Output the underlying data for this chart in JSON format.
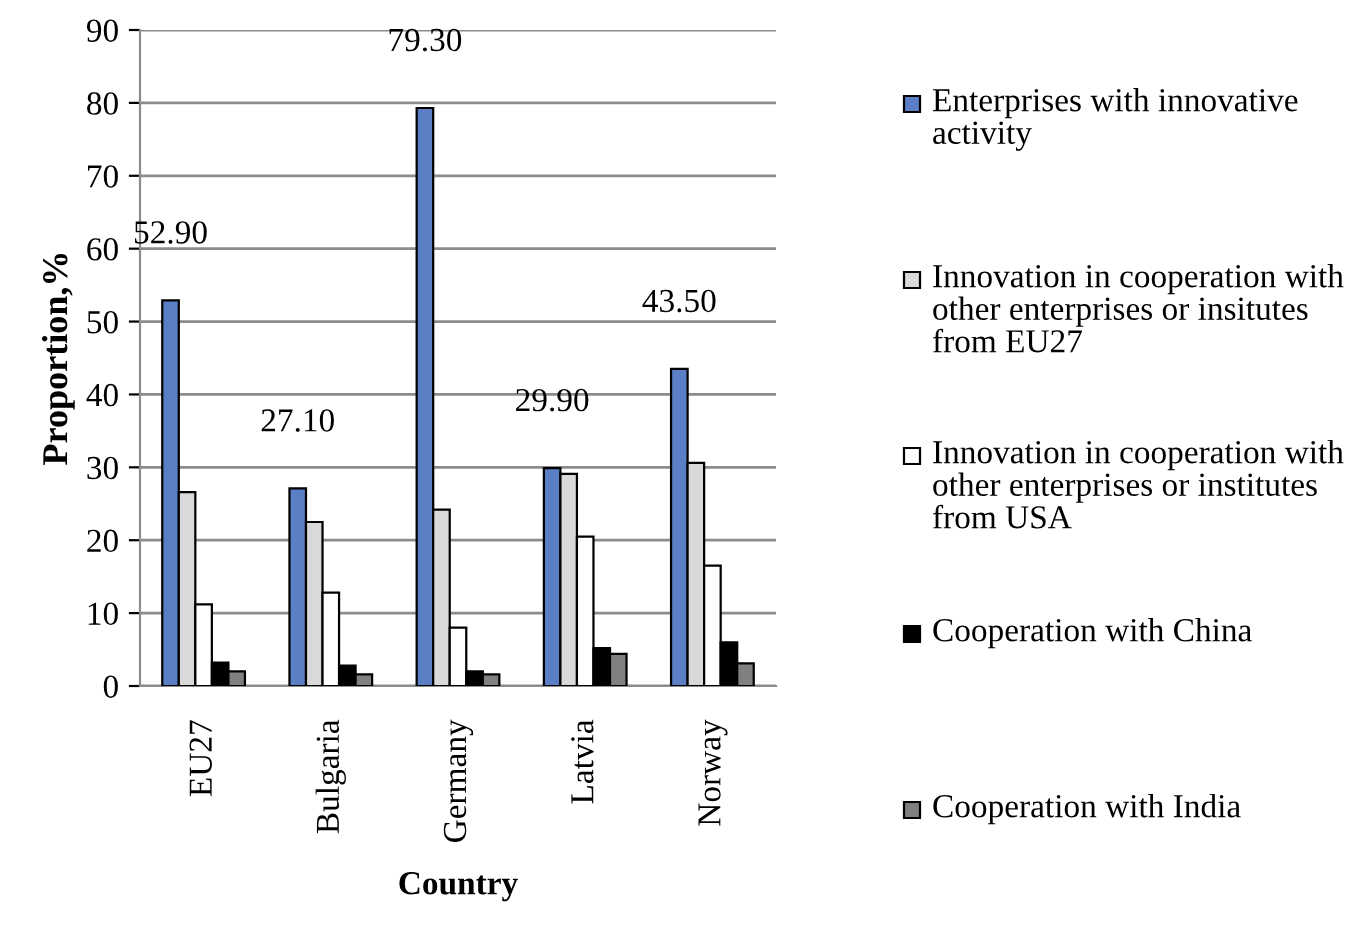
{
  "chart_data": {
    "type": "bar",
    "xlabel": "Country",
    "ylabel": "Proportion,%",
    "categories": [
      "EU27",
      "Bulgaria",
      "Germany",
      "Latvia",
      "Norway"
    ],
    "series": [
      {
        "name": "Enterprises with innovative activity",
        "color": "#5b7fc4",
        "values": [
          52.9,
          27.1,
          79.3,
          29.9,
          43.5
        ],
        "value_labels": [
          "52.90",
          "27.10",
          "79.30",
          "29.90",
          "43.50"
        ]
      },
      {
        "name": "Innovation in cooperation with other enterprises or insitutes from EU27",
        "color": "#d9d9d9",
        "values": [
          26.6,
          22.5,
          24.2,
          29.1,
          30.6
        ]
      },
      {
        "name": "Innovation in cooperation with other enterprises or institutes from USA",
        "color": "#ffffff",
        "values": [
          11.2,
          12.8,
          8.0,
          20.5,
          16.5
        ]
      },
      {
        "name": "Cooperation with China",
        "color": "#000000",
        "values": [
          3.2,
          2.8,
          2.0,
          5.2,
          6.0
        ]
      },
      {
        "name": "Cooperation with India",
        "color": "#808080",
        "values": [
          2.0,
          1.6,
          1.6,
          4.4,
          3.1
        ]
      }
    ],
    "ylim": [
      0,
      90
    ],
    "yticks": [
      0,
      10,
      20,
      30,
      40,
      50,
      60,
      70,
      80,
      90
    ],
    "grid": "y",
    "legend": "right"
  }
}
